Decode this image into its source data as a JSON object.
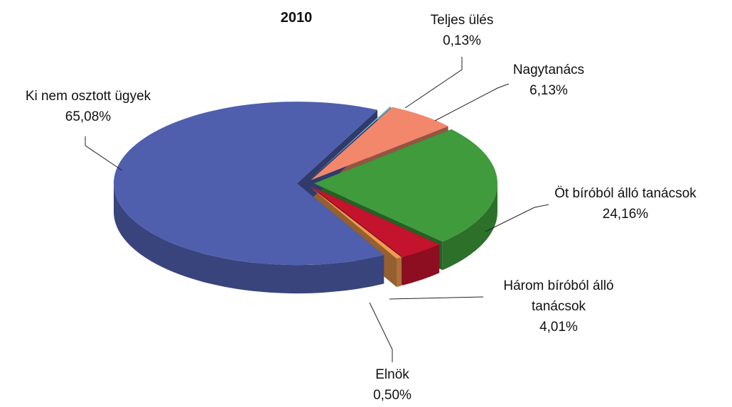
{
  "chart_data": {
    "type": "pie",
    "title": "2010",
    "categories": [
      "Teljes ülés",
      "Nagytanács",
      "Öt bíróból álló tanácsok",
      "Három bíróból álló tanácsok",
      "Elnök",
      "Ki nem osztott ügyek"
    ],
    "values": [
      0.13,
      6.13,
      24.16,
      4.01,
      0.5,
      65.08
    ],
    "value_labels": [
      "0,13%",
      "6,13%",
      "24,16%",
      "4,01%",
      "0,50%",
      "65,08%"
    ],
    "colors": [
      "#8fd6ea",
      "#f2876b",
      "#3f9b3b",
      "#c3132d",
      "#f29a4e",
      "#4f5fad"
    ]
  }
}
